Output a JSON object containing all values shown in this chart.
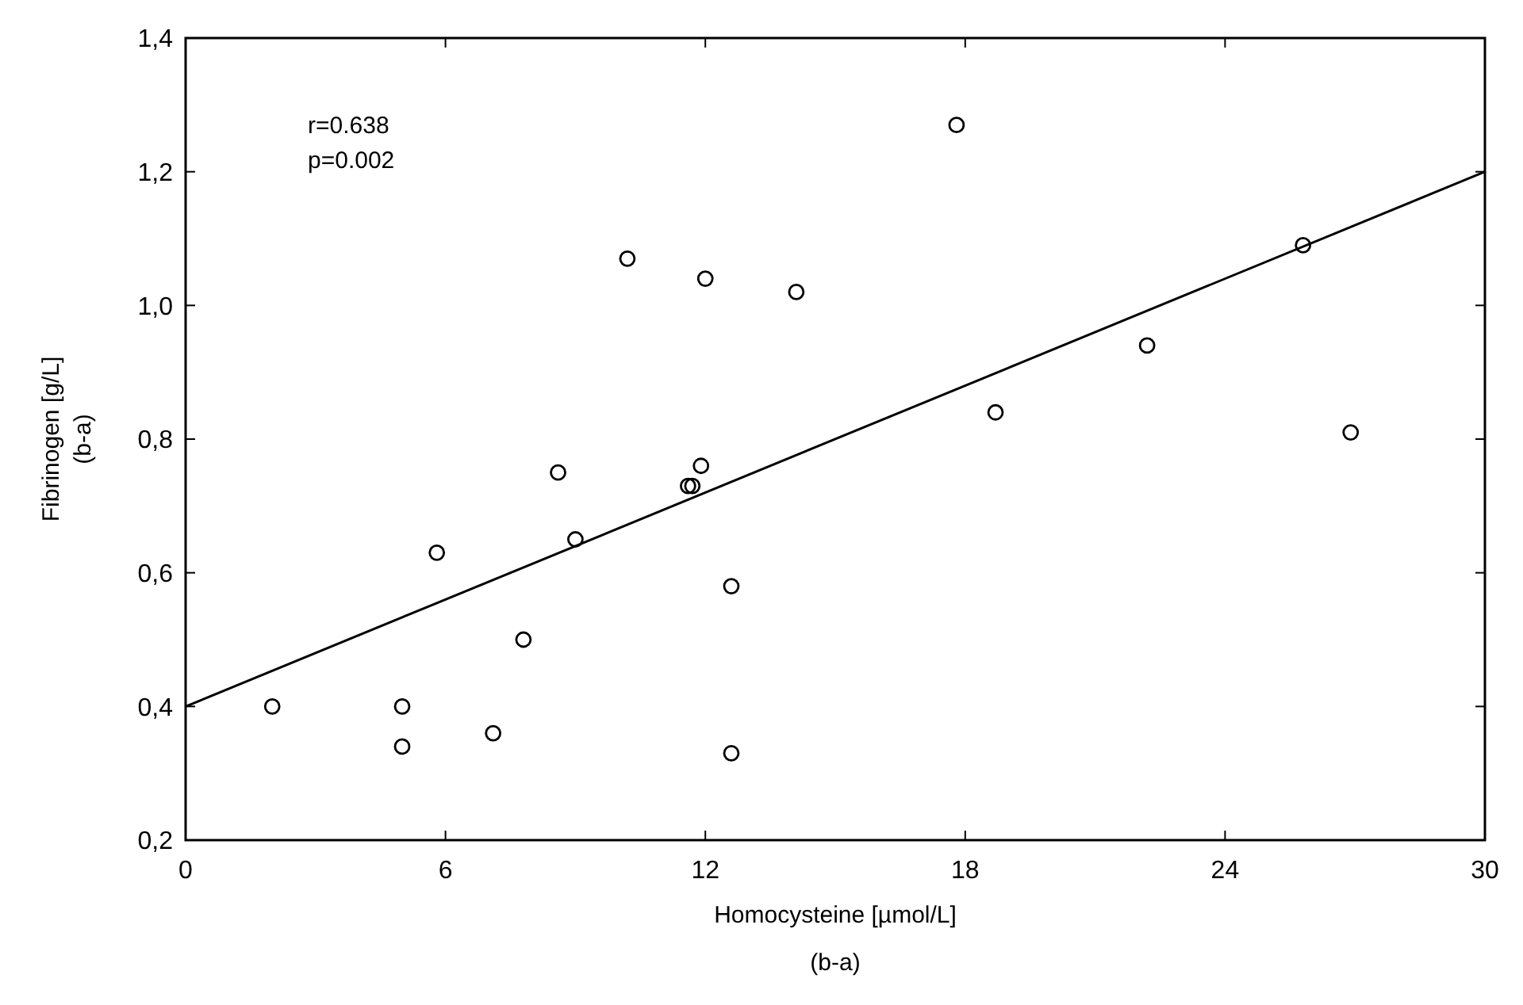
{
  "chart_data": {
    "type": "scatter",
    "xlabel": "Homocysteine [µmol/L]\n(b-a)",
    "ylabel": "Fibrinogen [g/L]\n(b-a)",
    "annotations": [
      "r=0.638",
      "p=0.002"
    ],
    "xlim": [
      0,
      30
    ],
    "xticks": [
      0,
      6,
      12,
      18,
      24,
      30
    ],
    "ylim": [
      0.2,
      1.4
    ],
    "yticks": [
      {
        "value": 0.2,
        "label": "0,2"
      },
      {
        "value": 0.4,
        "label": "0,4"
      },
      {
        "value": 0.6,
        "label": "0,6"
      },
      {
        "value": 0.8,
        "label": "0,8"
      },
      {
        "value": 1.0,
        "label": "1,0"
      },
      {
        "value": 1.2,
        "label": "1,2"
      },
      {
        "value": 1.4,
        "label": "1,4"
      }
    ],
    "grid": false,
    "series": [
      {
        "type": "scatter",
        "marker": "circle",
        "color": "#000000",
        "x": [
          2.0,
          5.0,
          5.0,
          5.8,
          7.1,
          7.8,
          8.6,
          9.0,
          11.6,
          11.7,
          11.9,
          12.6,
          12.6,
          10.2,
          12.0,
          14.1,
          17.8,
          18.7,
          22.2,
          25.8,
          26.9
        ],
        "values": [
          0.4,
          0.4,
          0.34,
          0.63,
          0.36,
          0.5,
          0.75,
          0.65,
          0.73,
          0.73,
          0.76,
          0.58,
          0.33,
          1.07,
          1.04,
          1.02,
          1.27,
          0.84,
          0.94,
          1.09,
          0.81
        ]
      },
      {
        "type": "line",
        "marker": "none",
        "color": "#000000",
        "line_style": "solid",
        "x": [
          0,
          30
        ],
        "values": [
          0.4,
          1.2
        ]
      }
    ]
  }
}
